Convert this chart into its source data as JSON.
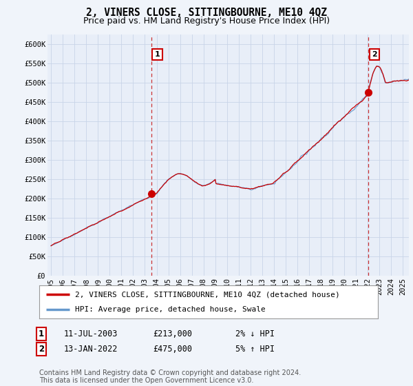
{
  "title": "2, VINERS CLOSE, SITTINGBOURNE, ME10 4QZ",
  "subtitle": "Price paid vs. HM Land Registry's House Price Index (HPI)",
  "ylabel_ticks": [
    "£0",
    "£50K",
    "£100K",
    "£150K",
    "£200K",
    "£250K",
    "£300K",
    "£350K",
    "£400K",
    "£450K",
    "£500K",
    "£550K",
    "£600K"
  ],
  "ytick_values": [
    0,
    50000,
    100000,
    150000,
    200000,
    250000,
    300000,
    350000,
    400000,
    450000,
    500000,
    550000,
    600000
  ],
  "ylim": [
    0,
    625000
  ],
  "xlim_start": 1994.7,
  "xlim_end": 2025.5,
  "bg_color": "#f0f4fa",
  "plot_bg_color": "#e8eef8",
  "grid_color": "#c8d4e8",
  "hpi_line_color": "#6699cc",
  "price_line_color": "#cc0000",
  "vline_color": "#cc3333",
  "transaction_1_x": 2003.53,
  "transaction_1_y": 213000,
  "transaction_2_x": 2022.04,
  "transaction_2_y": 475000,
  "legend_label_price": "2, VINERS CLOSE, SITTINGBOURNE, ME10 4QZ (detached house)",
  "legend_label_hpi": "HPI: Average price, detached house, Swale",
  "table_row1": [
    "1",
    "11-JUL-2003",
    "£213,000",
    "2% ↓ HPI"
  ],
  "table_row2": [
    "2",
    "13-JAN-2022",
    "£475,000",
    "5% ↑ HPI"
  ],
  "footer": "Contains HM Land Registry data © Crown copyright and database right 2024.\nThis data is licensed under the Open Government Licence v3.0.",
  "title_fontsize": 10.5,
  "subtitle_fontsize": 9,
  "tick_fontsize": 7.5,
  "legend_fontsize": 8,
  "table_fontsize": 8.5,
  "footer_fontsize": 7
}
